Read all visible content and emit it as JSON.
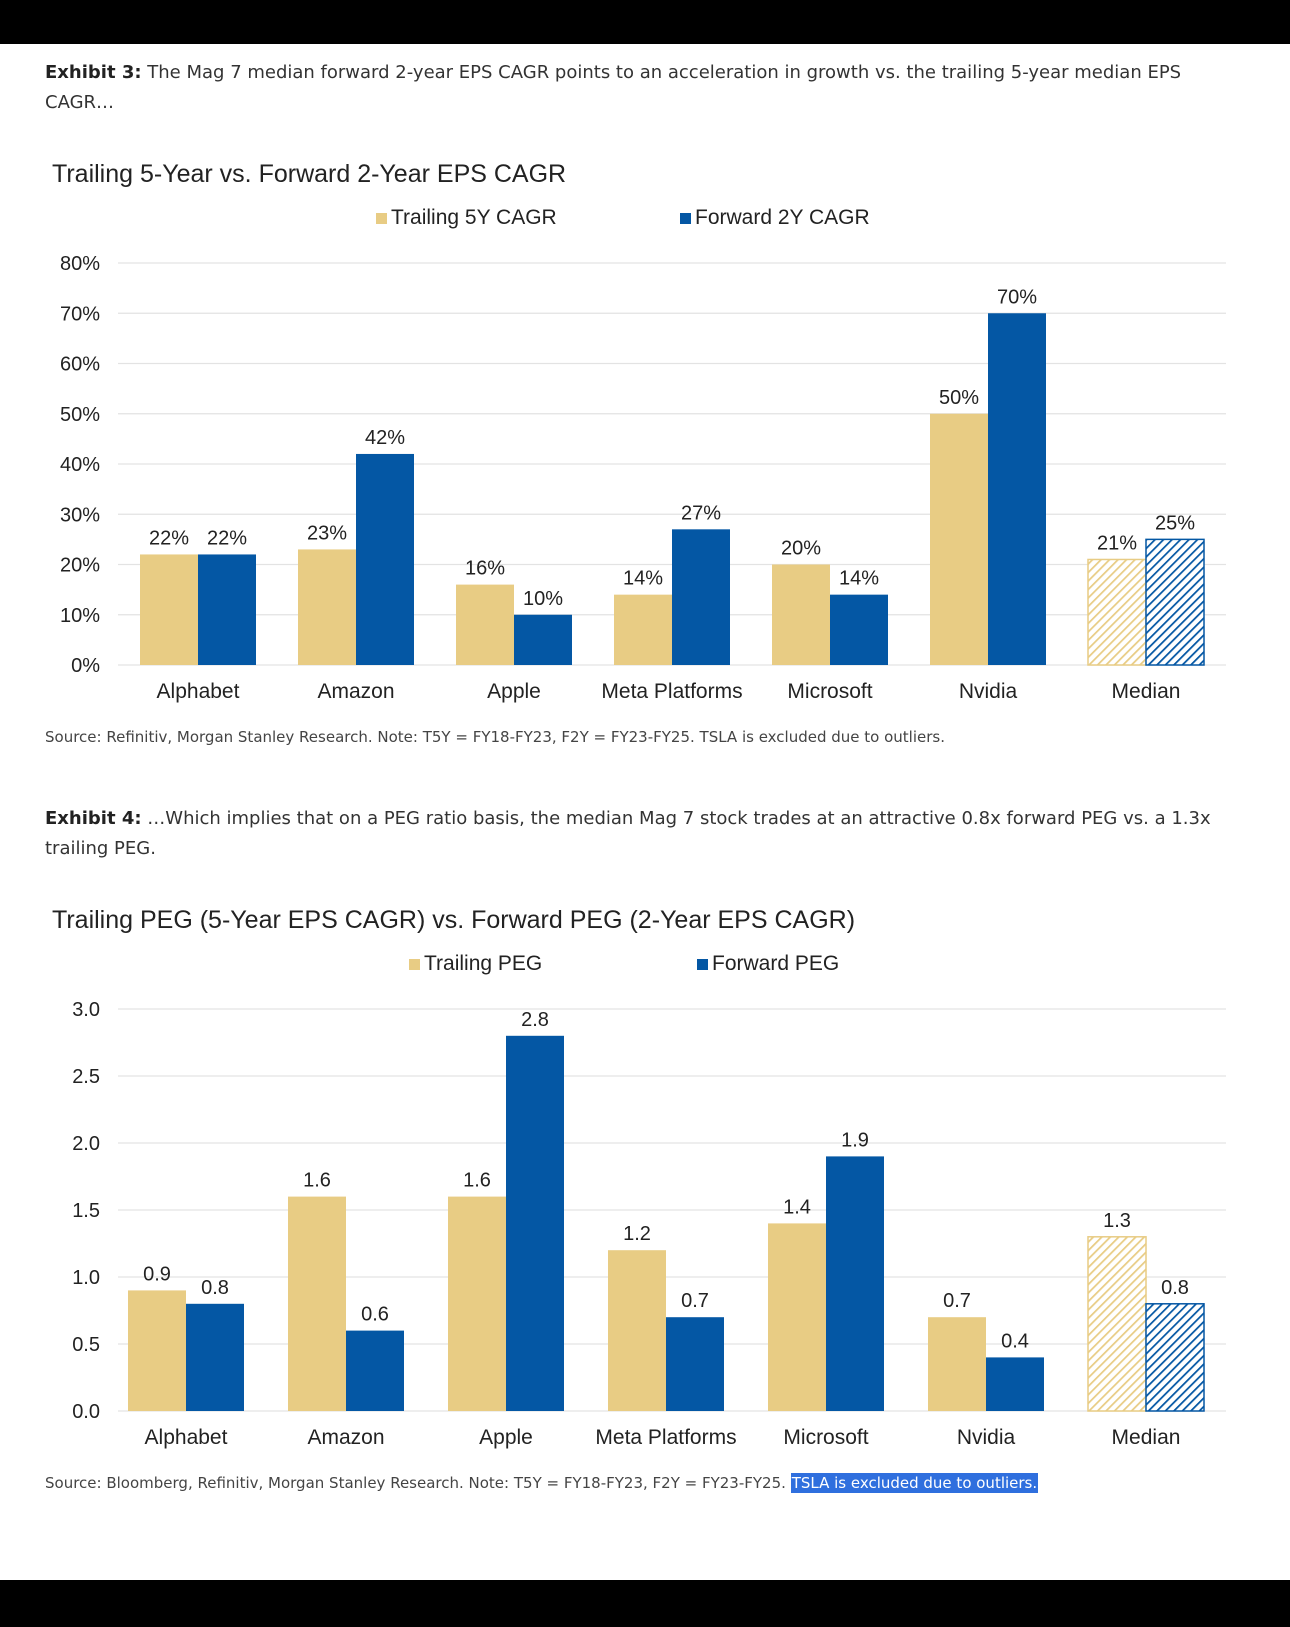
{
  "exhibit3": {
    "label": "Exhibit 3:",
    "caption": "The Mag 7 median forward 2-year EPS CAGR points to an acceleration in growth vs. the trailing 5-year median EPS CAGR…",
    "source": "Source: Refinitiv, Morgan Stanley Research. Note: T5Y = FY18-FY23, F2Y = FY23-FY25. TSLA is excluded due to outliers."
  },
  "exhibit4": {
    "label": "Exhibit 4:",
    "caption": "…Which implies that on a PEG ratio basis, the median Mag 7 stock trades at an attractive 0.8x forward PEG vs. a 1.3x trailing PEG.",
    "source": "Source: Bloomberg, Refinitiv, Morgan Stanley Research. Note: T5Y = FY18-FY23, F2Y = FY23-FY25.",
    "source_highlight": "TSLA is excluded due to outliers."
  },
  "colors": {
    "trailing": "#e8cc84",
    "forward": "#0457a4",
    "gridline": "#e3e3e3",
    "highlight": "#2f6fde"
  },
  "chart_data": [
    {
      "type": "bar",
      "title": "Trailing 5-Year vs. Forward 2-Year EPS CAGR",
      "categories": [
        "Alphabet",
        "Amazon",
        "Apple",
        "Meta Platforms",
        "Microsoft",
        "Nvidia",
        "Median"
      ],
      "series": [
        {
          "name": "Trailing 5Y CAGR",
          "values": [
            22,
            23,
            16,
            14,
            20,
            50,
            21
          ],
          "labels": [
            "22%",
            "23%",
            "16%",
            "14%",
            "20%",
            "50%",
            "21%"
          ]
        },
        {
          "name": "Forward 2Y CAGR",
          "values": [
            22,
            42,
            10,
            27,
            14,
            70,
            25
          ],
          "labels": [
            "22%",
            "42%",
            "10%",
            "27%",
            "14%",
            "70%",
            "25%"
          ]
        }
      ],
      "hatched_category": "Median",
      "yticks": [
        "0%",
        "10%",
        "20%",
        "30%",
        "40%",
        "50%",
        "60%",
        "70%",
        "80%"
      ],
      "ylim": [
        0,
        80
      ],
      "legend": "top-center",
      "grid": true
    },
    {
      "type": "bar",
      "title": "Trailing PEG (5-Year EPS CAGR) vs. Forward PEG (2-Year EPS CAGR)",
      "categories": [
        "Alphabet",
        "Amazon",
        "Apple",
        "Meta Platforms",
        "Microsoft",
        "Nvidia",
        "Median"
      ],
      "series": [
        {
          "name": "Trailing PEG",
          "values": [
            0.9,
            1.6,
            1.6,
            1.2,
            1.4,
            0.7,
            1.3
          ],
          "labels": [
            "0.9",
            "1.6",
            "1.6",
            "1.2",
            "1.4",
            "0.7",
            "1.3"
          ]
        },
        {
          "name": "Forward PEG",
          "values": [
            0.8,
            0.6,
            2.8,
            0.7,
            1.9,
            0.4,
            0.8
          ],
          "labels": [
            "0.8",
            "0.6",
            "2.8",
            "0.7",
            "1.9",
            "0.4",
            "0.8"
          ]
        }
      ],
      "hatched_category": "Median",
      "yticks": [
        "0.0",
        "0.5",
        "1.0",
        "1.5",
        "2.0",
        "2.5",
        "3.0"
      ],
      "ylim": [
        0,
        3
      ],
      "legend": "top-center",
      "grid": true
    }
  ]
}
